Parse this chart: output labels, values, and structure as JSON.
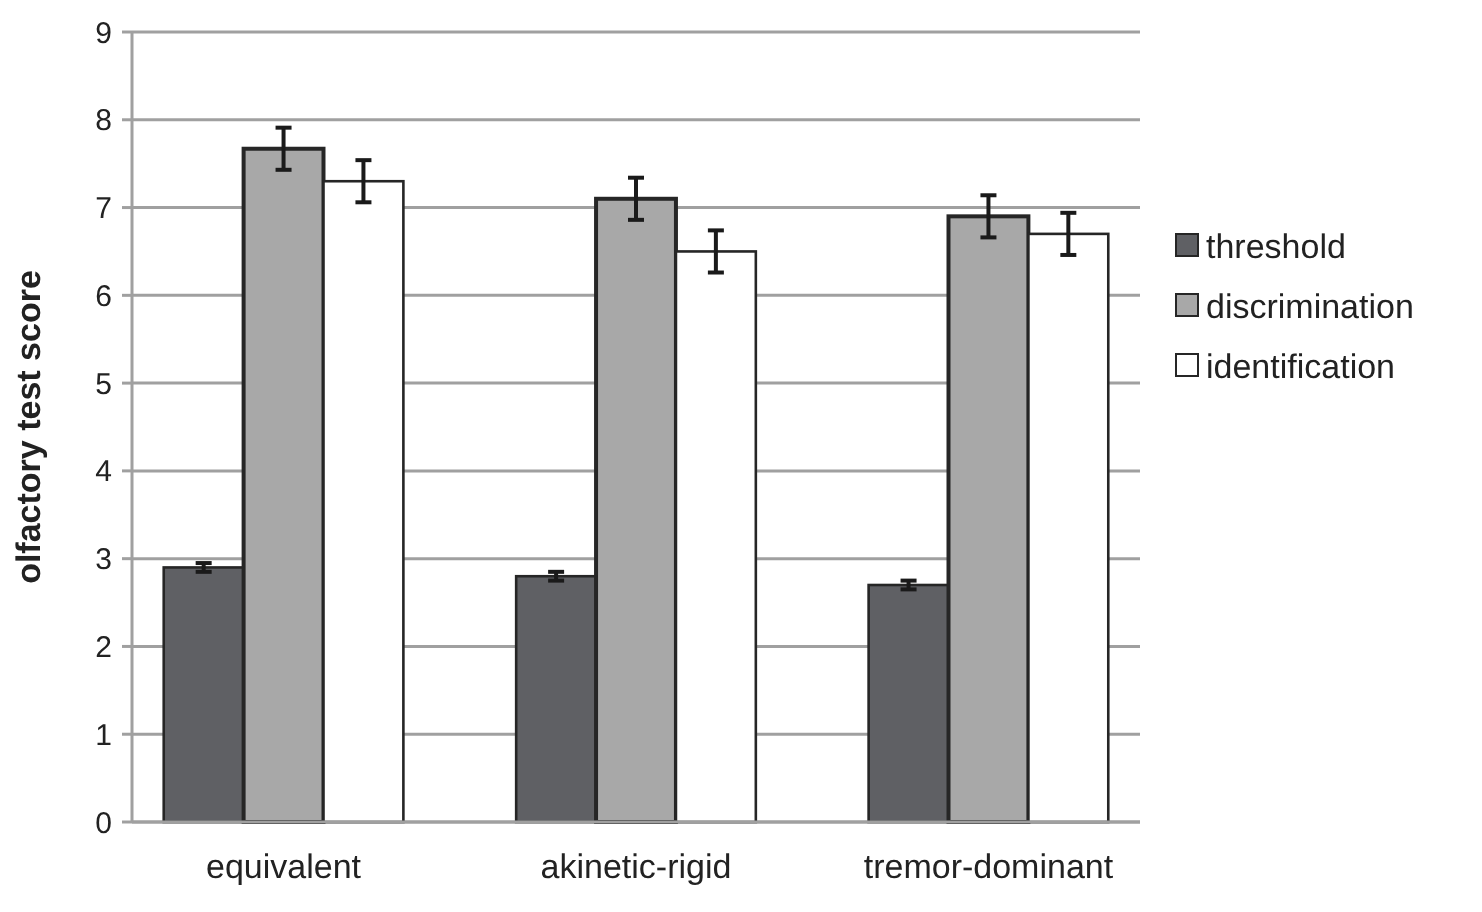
{
  "chart_data": {
    "type": "bar",
    "ylabel": "olfactory test score",
    "categories": [
      "equivalent",
      "akinetic-rigid",
      "tremor-dominant"
    ],
    "series": [
      {
        "name": "threshold",
        "color": "#5f6064",
        "values": [
          2.9,
          2.8,
          2.7
        ],
        "errors": [
          0.05,
          0.05,
          0.05
        ]
      },
      {
        "name": "discrimination",
        "color": "#a8a8a8",
        "values": [
          7.67,
          7.1,
          6.9
        ],
        "errors": [
          0.24,
          0.24,
          0.24
        ]
      },
      {
        "name": "identification",
        "color": "#ffffff",
        "values": [
          7.3,
          6.5,
          6.7
        ],
        "errors": [
          0.24,
          0.24,
          0.24
        ]
      }
    ],
    "ylim": [
      0,
      9
    ],
    "yticks": [
      0,
      1,
      2,
      3,
      4,
      5,
      6,
      7,
      8,
      9
    ],
    "grid": "y",
    "legend": "right"
  }
}
